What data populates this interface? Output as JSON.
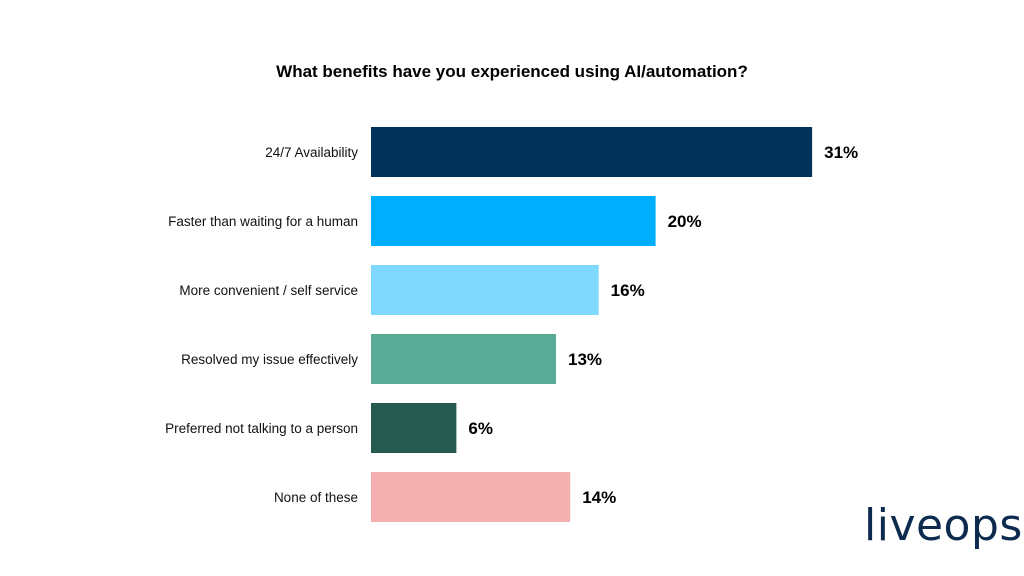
{
  "chart_data": {
    "type": "bar",
    "orientation": "horizontal",
    "title": "What benefits have you experienced using AI/automation?",
    "categories": [
      "24/7 Availability",
      "Faster than waiting for a human",
      "More convenient / self service",
      "Resolved my issue effectively",
      "Preferred not talking to a person",
      "None of these"
    ],
    "values": [
      31,
      20,
      16,
      13,
      6,
      14
    ],
    "value_suffix": "%",
    "colors": [
      "#00325a",
      "#00aeff",
      "#7fd9ff",
      "#5aac96",
      "#245b4e",
      "#f4afb0"
    ],
    "grid": false,
    "legend": "none"
  },
  "logo": {
    "text": "liveops",
    "color": "#0d2b4e"
  }
}
